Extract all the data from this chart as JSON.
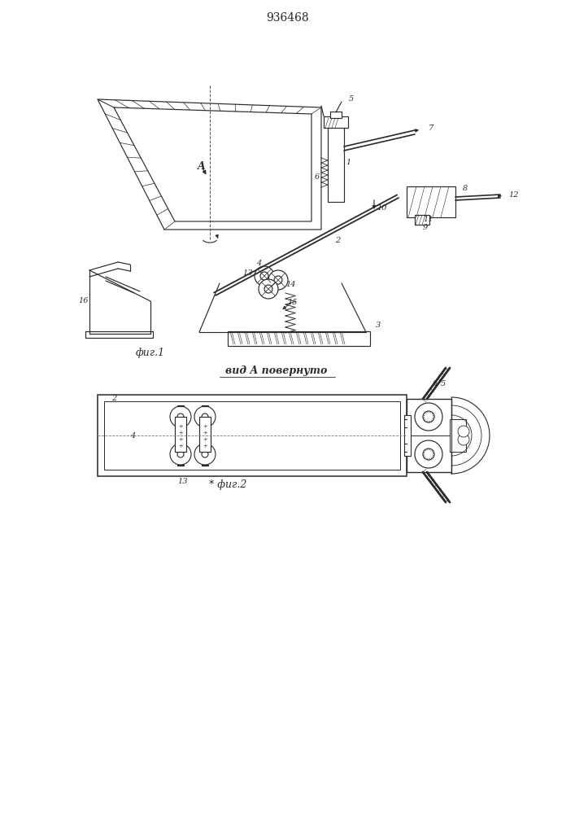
{
  "title": "936468",
  "fig1_label": "фиг.1",
  "fig2_label": "* фиг.2",
  "view_label": "вид A повернуто",
  "line_color": "#2a2a2a"
}
